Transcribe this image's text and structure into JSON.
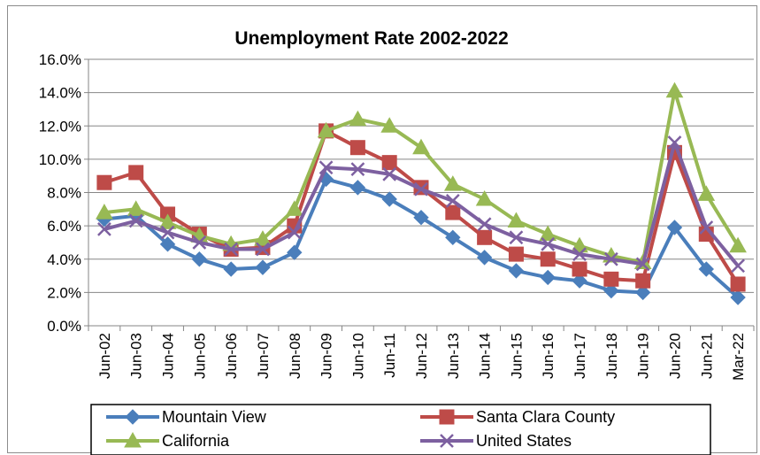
{
  "chart_data": {
    "type": "line",
    "title": "Unemployment Rate 2002-2022",
    "xlabel": "",
    "ylabel": "",
    "categories": [
      "Jun-02",
      "Jun-03",
      "Jun-04",
      "Jun-05",
      "Jun-06",
      "Jun-07",
      "Jun-08",
      "Jun-09",
      "Jun-10",
      "Jun-11",
      "Jun-12",
      "Jun-13",
      "Jun-14",
      "Jun-15",
      "Jun-16",
      "Jun-17",
      "Jun-18",
      "Jun-19",
      "Jun-20",
      "Jun-21",
      "Mar-22"
    ],
    "ylim": [
      0,
      16
    ],
    "yticks": [
      "0.0%",
      "2.0%",
      "4.0%",
      "6.0%",
      "8.0%",
      "10.0%",
      "12.0%",
      "14.0%",
      "16.0%"
    ],
    "grid": true,
    "legend_position": "bottom",
    "series": [
      {
        "name": "Mountain View",
        "color": "#4a7ebb",
        "marker": "diamond",
        "values": [
          6.4,
          6.6,
          4.9,
          4.0,
          3.4,
          3.5,
          4.4,
          8.8,
          8.3,
          7.6,
          6.5,
          5.3,
          4.1,
          3.3,
          2.9,
          2.7,
          2.1,
          2.0,
          5.9,
          3.4,
          1.7
        ]
      },
      {
        "name": "Santa Clara County",
        "color": "#be4b48",
        "marker": "square",
        "values": [
          8.6,
          9.2,
          6.7,
          5.5,
          4.6,
          4.7,
          6.0,
          11.7,
          10.7,
          9.8,
          8.3,
          6.8,
          5.3,
          4.3,
          4.0,
          3.4,
          2.8,
          2.7,
          10.4,
          5.5,
          2.5
        ]
      },
      {
        "name": "California",
        "color": "#98b954",
        "marker": "triangle",
        "values": [
          6.8,
          7.0,
          6.2,
          5.4,
          4.9,
          5.2,
          7.0,
          11.7,
          12.4,
          12.0,
          10.7,
          8.5,
          7.6,
          6.3,
          5.5,
          4.8,
          4.2,
          3.8,
          14.1,
          7.9,
          4.8
        ]
      },
      {
        "name": "United States",
        "color": "#7d60a0",
        "marker": "x",
        "values": [
          5.8,
          6.3,
          5.6,
          5.0,
          4.6,
          4.6,
          5.6,
          9.5,
          9.4,
          9.1,
          8.2,
          7.5,
          6.1,
          5.3,
          4.9,
          4.3,
          4.0,
          3.7,
          11.0,
          5.9,
          3.6
        ]
      }
    ]
  }
}
